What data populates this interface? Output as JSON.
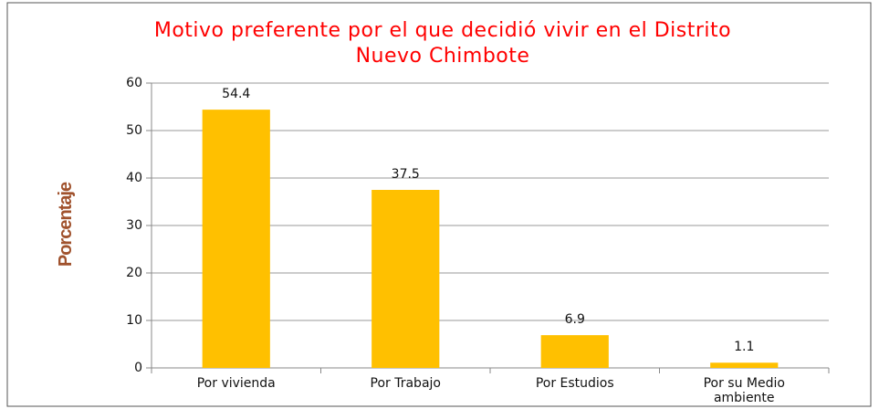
{
  "chart_data": {
    "type": "bar",
    "title": "Motivo preferente por el que decidió vivir en el Distrito Nuevo Chimbote",
    "y_label": "Porcentaje",
    "categories": [
      "Por vivienda",
      "Por Trabajo",
      "Por Estudios",
      "Por su Medio ambiente"
    ],
    "values": [
      54.4,
      37.5,
      6.9,
      1.1
    ],
    "color": "#ffc000",
    "ylim": [
      0,
      60
    ],
    "yticks": [
      0,
      10,
      20,
      30,
      40,
      50,
      60
    ],
    "grid": true
  }
}
